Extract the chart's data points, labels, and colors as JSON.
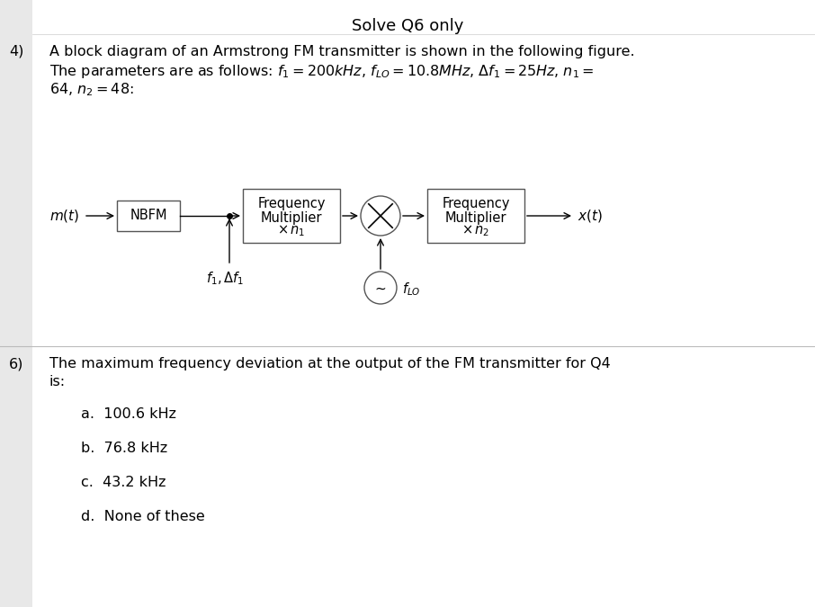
{
  "title": "Solve Q6 only",
  "background_color": "#e8e8e8",
  "q4_label": "4)",
  "q6_label": "6)",
  "option_a": "a.  100.6 kHz",
  "option_b": "b.  76.8 kHz",
  "option_c": "c.  43.2 kHz",
  "option_d": "d.  None of these",
  "text_color": "#000000",
  "box_facecolor": "#ffffff",
  "box_edgecolor": "#888888",
  "section_bg": "#f8f8f8",
  "title_fontsize": 13,
  "body_fontsize": 11.5,
  "diagram_fontsize": 10.5,
  "label_fontsize": 11
}
